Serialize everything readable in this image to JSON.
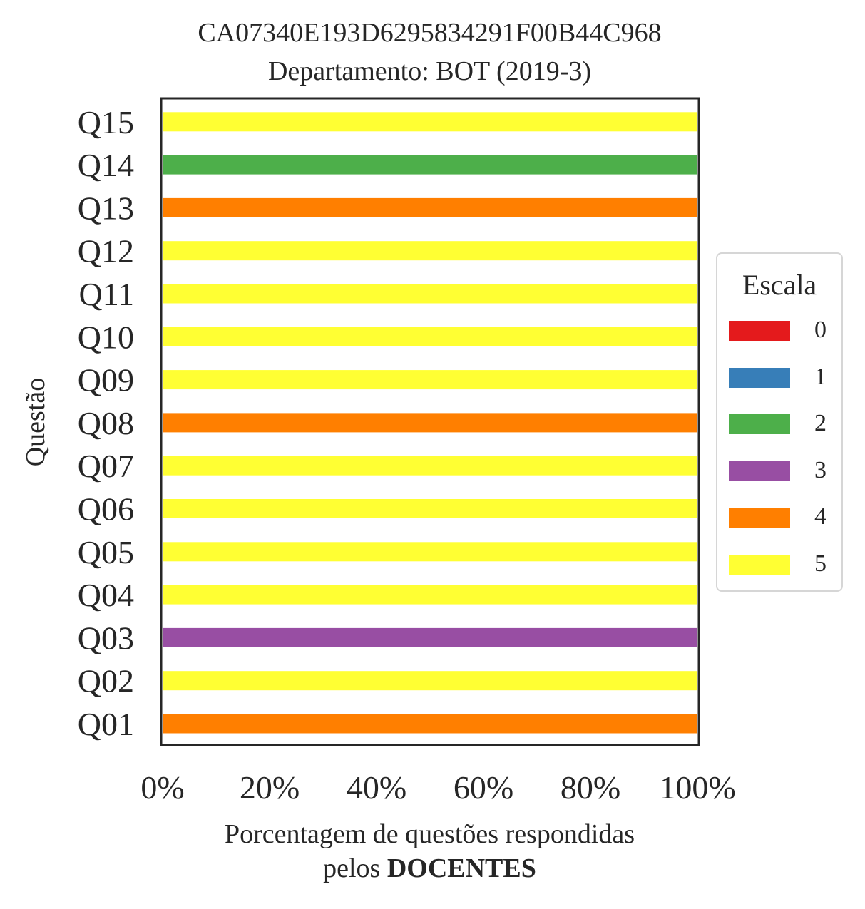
{
  "chart_data": {
    "type": "bar",
    "orientation": "horizontal",
    "stacked": true,
    "title": [
      "CA07340E193D6295834291F00B44C968",
      "Departamento: BOT (2019-3)"
    ],
    "xlabel": [
      "Porcentagem de questões respondidas",
      "pelos ",
      "DOCENTES"
    ],
    "ylabel": "Questão",
    "xlim": [
      0,
      100
    ],
    "xticks": [
      "0%",
      "20%",
      "40%",
      "60%",
      "80%",
      "100%"
    ],
    "categories": [
      "Q01",
      "Q02",
      "Q03",
      "Q04",
      "Q05",
      "Q06",
      "Q07",
      "Q08",
      "Q09",
      "Q10",
      "Q11",
      "Q12",
      "Q13",
      "Q14",
      "Q15"
    ],
    "legend_title": "Escala",
    "legend_position": "right",
    "grid": false,
    "series": [
      {
        "name": "0",
        "color": "#e41a1c",
        "values": [
          0,
          0,
          0,
          0,
          0,
          0,
          0,
          0,
          0,
          0,
          0,
          0,
          0,
          0,
          0
        ]
      },
      {
        "name": "1",
        "color": "#377eb8",
        "values": [
          0,
          0,
          0,
          0,
          0,
          0,
          0,
          0,
          0,
          0,
          0,
          0,
          0,
          0,
          0
        ]
      },
      {
        "name": "2",
        "color": "#4daf4a",
        "values": [
          0,
          0,
          0,
          0,
          0,
          0,
          0,
          0,
          0,
          0,
          0,
          0,
          0,
          100,
          0
        ]
      },
      {
        "name": "3",
        "color": "#984ea3",
        "values": [
          0,
          0,
          100,
          0,
          0,
          0,
          0,
          0,
          0,
          0,
          0,
          0,
          0,
          0,
          0
        ]
      },
      {
        "name": "4",
        "color": "#ff7f00",
        "values": [
          100,
          0,
          0,
          0,
          0,
          0,
          0,
          100,
          0,
          0,
          0,
          0,
          100,
          0,
          0
        ]
      },
      {
        "name": "5",
        "color": "#ffff33",
        "values": [
          0,
          100,
          0,
          100,
          100,
          100,
          100,
          0,
          100,
          100,
          100,
          100,
          0,
          0,
          100
        ]
      }
    ]
  }
}
